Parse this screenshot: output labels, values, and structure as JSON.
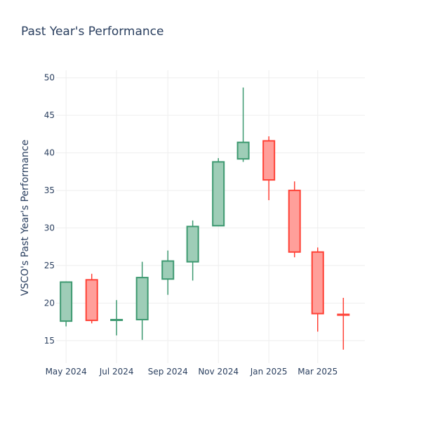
{
  "chart_data": {
    "type": "candlestick",
    "title": "Past Year's Performance",
    "xlabel": "",
    "ylabel": "VSCO's Past Year's Performance",
    "ylim": [
      12,
      51
    ],
    "yticks": [
      15,
      20,
      25,
      30,
      35,
      40,
      45,
      50
    ],
    "xlim": [
      "2024-04-19",
      "2025-04-27"
    ],
    "xticks": [
      {
        "date": "2024-05-01",
        "label": "May 2024"
      },
      {
        "date": "2024-07-01",
        "label": "Jul 2024"
      },
      {
        "date": "2024-09-01",
        "label": "Sep 2024"
      },
      {
        "date": "2024-11-01",
        "label": "Nov 2024"
      },
      {
        "date": "2025-01-01",
        "label": "Jan 2025"
      },
      {
        "date": "2025-03-01",
        "label": "Mar 2025"
      }
    ],
    "grid": true,
    "colors": {
      "increasing_line": "#3d9970",
      "increasing_fill": "#9ecdb7",
      "decreasing_line": "#ff4136",
      "decreasing_fill": "#ff9f9a"
    },
    "candles": [
      {
        "date": "2024-05-01",
        "open": 17.6,
        "high": 22.9,
        "low": 16.9,
        "close": 22.8
      },
      {
        "date": "2024-06-01",
        "open": 23.1,
        "high": 23.9,
        "low": 17.3,
        "close": 17.7
      },
      {
        "date": "2024-07-01",
        "open": 17.8,
        "high": 20.4,
        "low": 15.7,
        "close": 17.8
      },
      {
        "date": "2024-08-01",
        "open": 17.8,
        "high": 25.5,
        "low": 15.1,
        "close": 23.4
      },
      {
        "date": "2024-09-01",
        "open": 23.2,
        "high": 27.0,
        "low": 21.1,
        "close": 25.6
      },
      {
        "date": "2024-10-01",
        "open": 25.5,
        "high": 31.0,
        "low": 23.0,
        "close": 30.2
      },
      {
        "date": "2024-11-01",
        "open": 30.3,
        "high": 39.3,
        "low": 30.3,
        "close": 38.8
      },
      {
        "date": "2024-12-01",
        "open": 39.2,
        "high": 48.7,
        "low": 38.8,
        "close": 41.4
      },
      {
        "date": "2025-01-01",
        "open": 41.6,
        "high": 42.2,
        "low": 33.7,
        "close": 36.4
      },
      {
        "date": "2025-02-01",
        "open": 35.0,
        "high": 36.2,
        "low": 26.1,
        "close": 26.8
      },
      {
        "date": "2025-03-01",
        "open": 26.8,
        "high": 27.4,
        "low": 16.2,
        "close": 18.6
      },
      {
        "date": "2025-04-01",
        "open": 18.5,
        "high": 20.7,
        "low": 13.8,
        "close": 18.4
      }
    ]
  }
}
